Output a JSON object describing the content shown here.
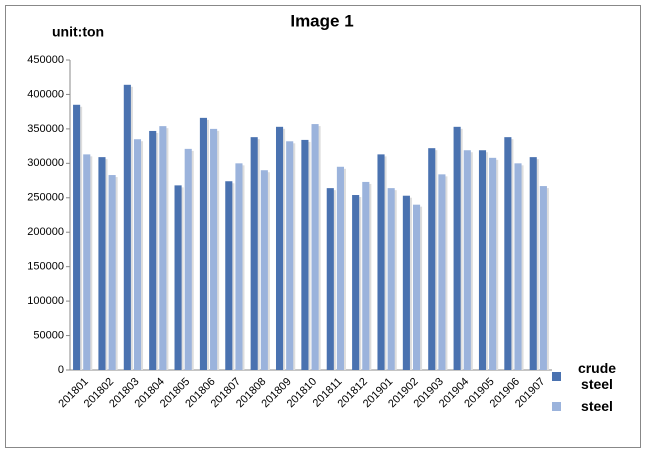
{
  "chart_data": {
    "type": "bar",
    "title": "Image 1",
    "y_label": "unit:ton",
    "categories": [
      "201801",
      "201802",
      "201803",
      "201804",
      "201805",
      "201806",
      "201807",
      "201808",
      "201809",
      "201810",
      "201811",
      "201812",
      "201901",
      "201902",
      "201903",
      "201904",
      "201905",
      "201906",
      "201907"
    ],
    "series": [
      {
        "name": "crude steel",
        "color": "#4a72b0",
        "values": [
          385000,
          309000,
          414000,
          347000,
          268000,
          366000,
          274000,
          338000,
          353000,
          334000,
          264000,
          254000,
          313000,
          253000,
          322000,
          353000,
          319000,
          338000,
          309000
        ]
      },
      {
        "name": "steel",
        "color": "#9bb3dc",
        "values": [
          313000,
          283000,
          335000,
          354000,
          321000,
          350000,
          300000,
          290000,
          332000,
          357000,
          295000,
          273000,
          264000,
          240000,
          284000,
          319000,
          308000,
          300000,
          267000
        ]
      }
    ],
    "ylim": [
      0,
      450000
    ],
    "yticks": [
      0,
      50000,
      100000,
      150000,
      200000,
      250000,
      300000,
      350000,
      400000,
      450000
    ],
    "grid": false
  }
}
